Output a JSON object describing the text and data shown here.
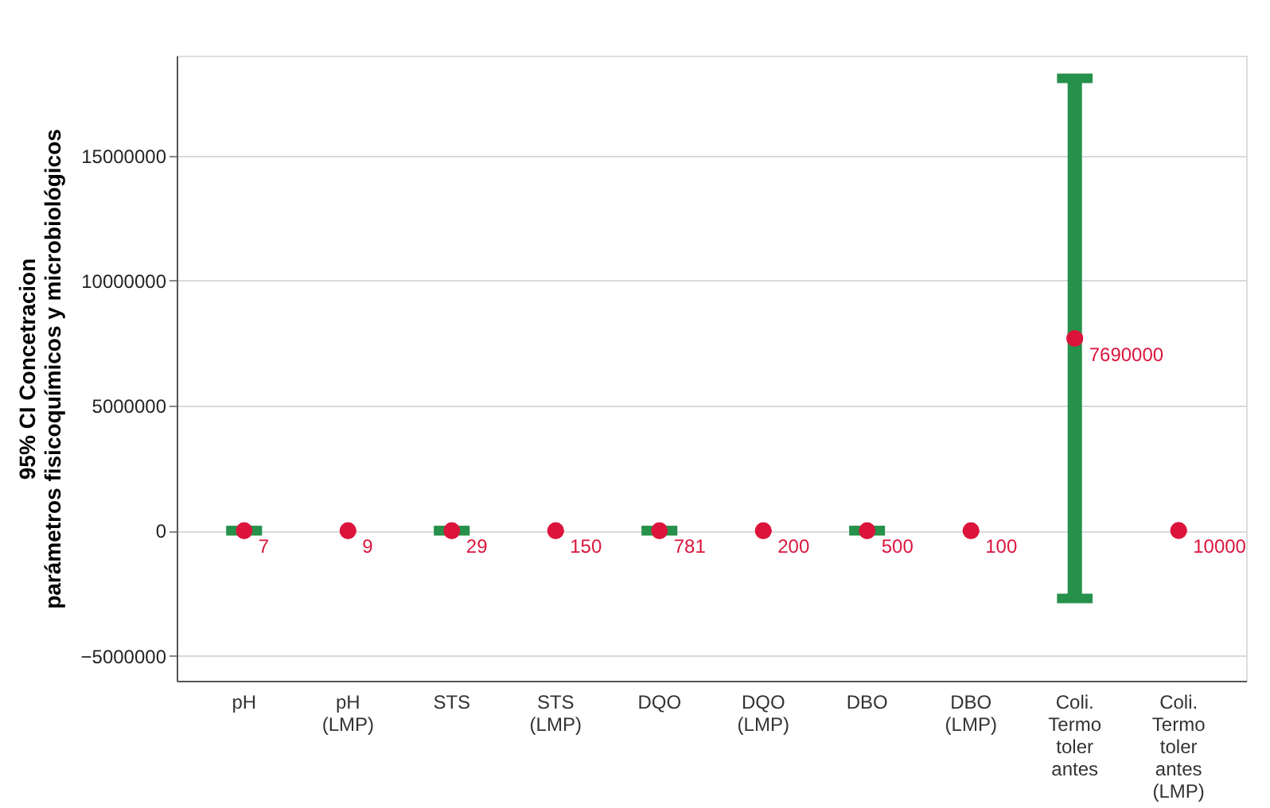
{
  "chart_data": {
    "type": "scatter",
    "ylabel": "95% CI Concetracion parámetros fisicoquímicos y microbiológicos",
    "categories": [
      "pH",
      "pH (LMP)",
      "STS",
      "STS (LMP)",
      "DQO",
      "DQO (LMP)",
      "DBO",
      "DBO (LMP)",
      "Coli. Termotolerantes",
      "Coli. Termotolerantes (LMP)"
    ],
    "series": [
      {
        "color": "#dc143c",
        "values": [
          7,
          9,
          29,
          150,
          781,
          200,
          500,
          100,
          7690000,
          10000
        ],
        "errors": [
          0,
          null,
          0,
          null,
          0,
          null,
          0,
          null,
          10400000,
          null
        ]
      }
    ],
    "data_labels": true,
    "marker": "circle",
    "ylim": [
      -6000000,
      19000000
    ],
    "yticks": [
      -5000000,
      0,
      5000000,
      10000000,
      15000000
    ],
    "grid": "y",
    "legend": false
  }
}
